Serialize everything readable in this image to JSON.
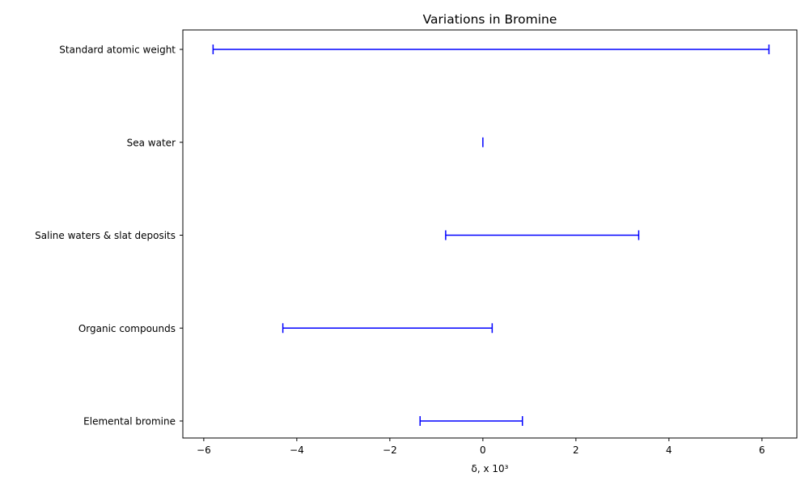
{
  "chart_data": {
    "type": "range",
    "title": "Variations  in Bromine",
    "xlabel": "δ, x 10³",
    "ylabel": "",
    "xlim": [
      -6.45,
      6.75
    ],
    "xticks": [
      -6,
      -4,
      -2,
      0,
      2,
      4,
      6
    ],
    "xtick_labels": [
      "−6",
      "−4",
      "−2",
      "0",
      "2",
      "4",
      "6"
    ],
    "categories": [
      "Standard atomic weight",
      "Sea water",
      "Saline waters & slat deposits",
      "Organic compounds",
      "Elemental bromine"
    ],
    "ranges": [
      {
        "low": -5.8,
        "high": 6.15
      },
      {
        "low": 0.0,
        "high": 0.0
      },
      {
        "low": -0.8,
        "high": 3.35
      },
      {
        "low": -4.3,
        "high": 0.2
      },
      {
        "low": -1.35,
        "high": 0.85
      }
    ],
    "grid": false,
    "line_color": "#0000ff"
  }
}
